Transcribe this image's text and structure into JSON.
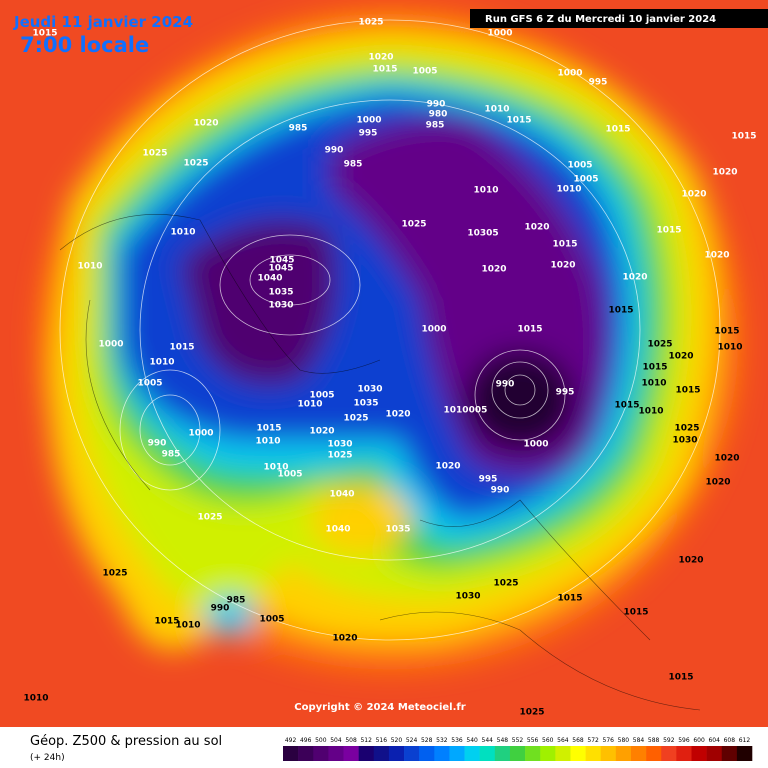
{
  "header": {
    "date": "Jeudi 11 janvier 2024",
    "time": "7:00 locale",
    "run": "Run GFS 6 Z du Mercredi 10 janvier 2024"
  },
  "map": {
    "copyright": "Copyright © 2024 Meteociel.fr",
    "isobar_labels": [
      "1025",
      "1015",
      "1000",
      "1020",
      "1015",
      "1005",
      "1000",
      "995",
      "1020",
      "985",
      "1000",
      "995",
      "990",
      "980",
      "985",
      "1010",
      "1015",
      "1015",
      "1025",
      "1025",
      "990",
      "985",
      "1005",
      "1005",
      "1010",
      "1020",
      "1010",
      "1020",
      "1010",
      "1025",
      "10305",
      "1020",
      "1015",
      "1015",
      "1020",
      "1020",
      "1020",
      "1045",
      "1045",
      "1040",
      "1010",
      "1035",
      "1030",
      "1020",
      "1000",
      "1015",
      "1015",
      "1000",
      "1015",
      "1010",
      "1005",
      "1030",
      "1035",
      "1005",
      "1010",
      "1025",
      "1020",
      "1010",
      "005",
      "990",
      "995",
      "1000",
      "990",
      "985",
      "1000",
      "1015",
      "1010",
      "1020",
      "1030",
      "1025",
      "1010",
      "1005",
      "1020",
      "995",
      "990",
      "1040",
      "1025",
      "1040",
      "1035",
      "1025",
      "1025",
      "1030",
      "1015",
      "1015",
      "1020",
      "985",
      "990",
      "1005",
      "1015",
      "1010",
      "1020",
      "1010",
      "1015",
      "1025",
      "1025",
      "1020",
      "1015",
      "1010",
      "1015",
      "1015",
      "1010",
      "1025",
      "1030",
      "1020",
      "1020",
      "1015",
      "1010",
      "1015"
    ]
  },
  "legend": {
    "title": "Géop. Z500 & pression au sol",
    "subtitle": "(+ 24h)",
    "ticks": [
      492,
      496,
      500,
      504,
      508,
      512,
      516,
      520,
      524,
      528,
      532,
      536,
      540,
      544,
      548,
      552,
      556,
      560,
      564,
      568,
      572,
      576,
      580,
      584,
      588,
      592,
      596,
      600,
      604,
      608,
      612
    ],
    "colors": [
      "#2a0040",
      "#3c0058",
      "#500070",
      "#640088",
      "#7a00a0",
      "#1a0070",
      "#10108a",
      "#0a20b0",
      "#0a40d0",
      "#0060f0",
      "#0080ff",
      "#00a8ff",
      "#00d0f0",
      "#00e0c0",
      "#20d080",
      "#40d040",
      "#70e020",
      "#a0f000",
      "#d0f000",
      "#ffff00",
      "#ffe000",
      "#ffc000",
      "#ffa000",
      "#ff8000",
      "#ff6000",
      "#f04020",
      "#e02010",
      "#c00000",
      "#a00000",
      "#600000",
      "#200000"
    ]
  }
}
